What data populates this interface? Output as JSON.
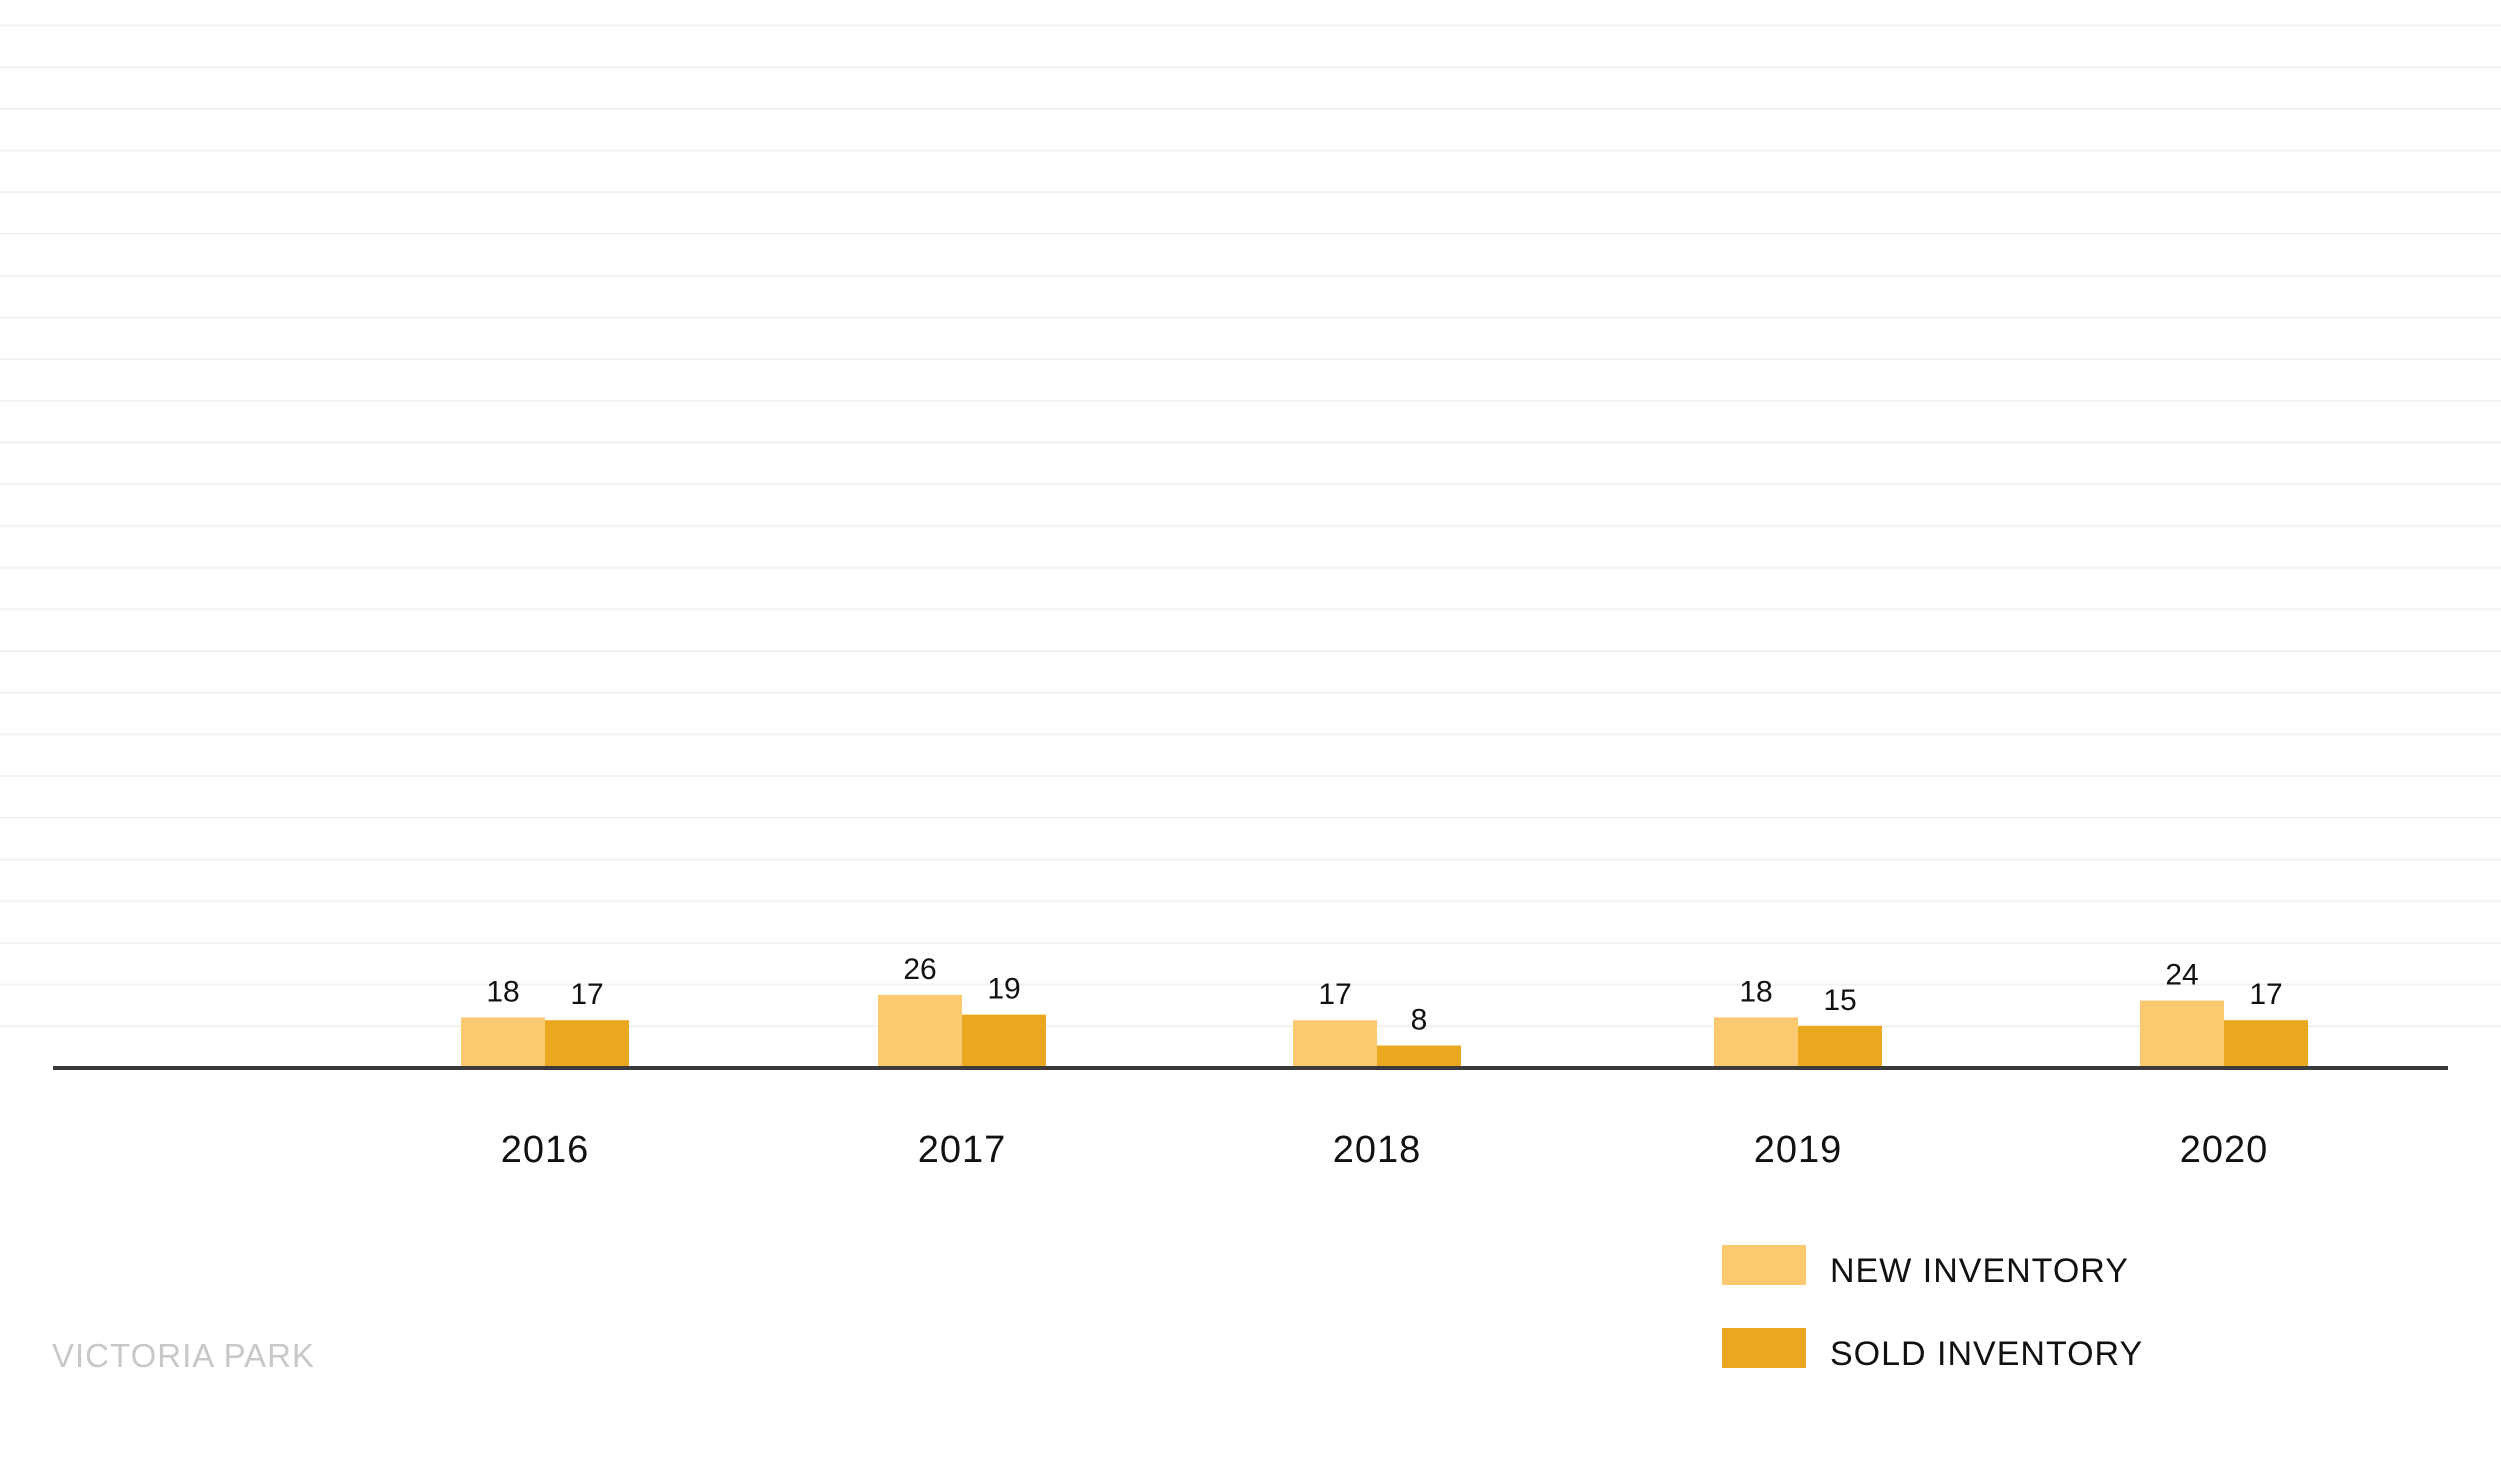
{
  "caption": "VICTORIA PARK",
  "colors": {
    "new_inventory": "#fbc96f",
    "sold_inventory": "#eaa820",
    "baseline": "#3a3a3a",
    "gridline": "#f2f2f2",
    "caption": "#c8c8c8"
  },
  "chart_data": {
    "type": "bar",
    "title": "",
    "xlabel": "",
    "ylabel": "",
    "categories": [
      "2016",
      "2017",
      "2018",
      "2019",
      "2020"
    ],
    "series": [
      {
        "name": "NEW INVENTORY",
        "values": [
          18,
          26,
          17,
          18,
          24
        ]
      },
      {
        "name": "SOLD INVENTORY",
        "values": [
          17,
          19,
          8,
          15,
          17
        ]
      }
    ],
    "ylim": [
      0,
      250
    ],
    "grid": true,
    "data_labels": true,
    "legend_position": "bottom-right"
  }
}
